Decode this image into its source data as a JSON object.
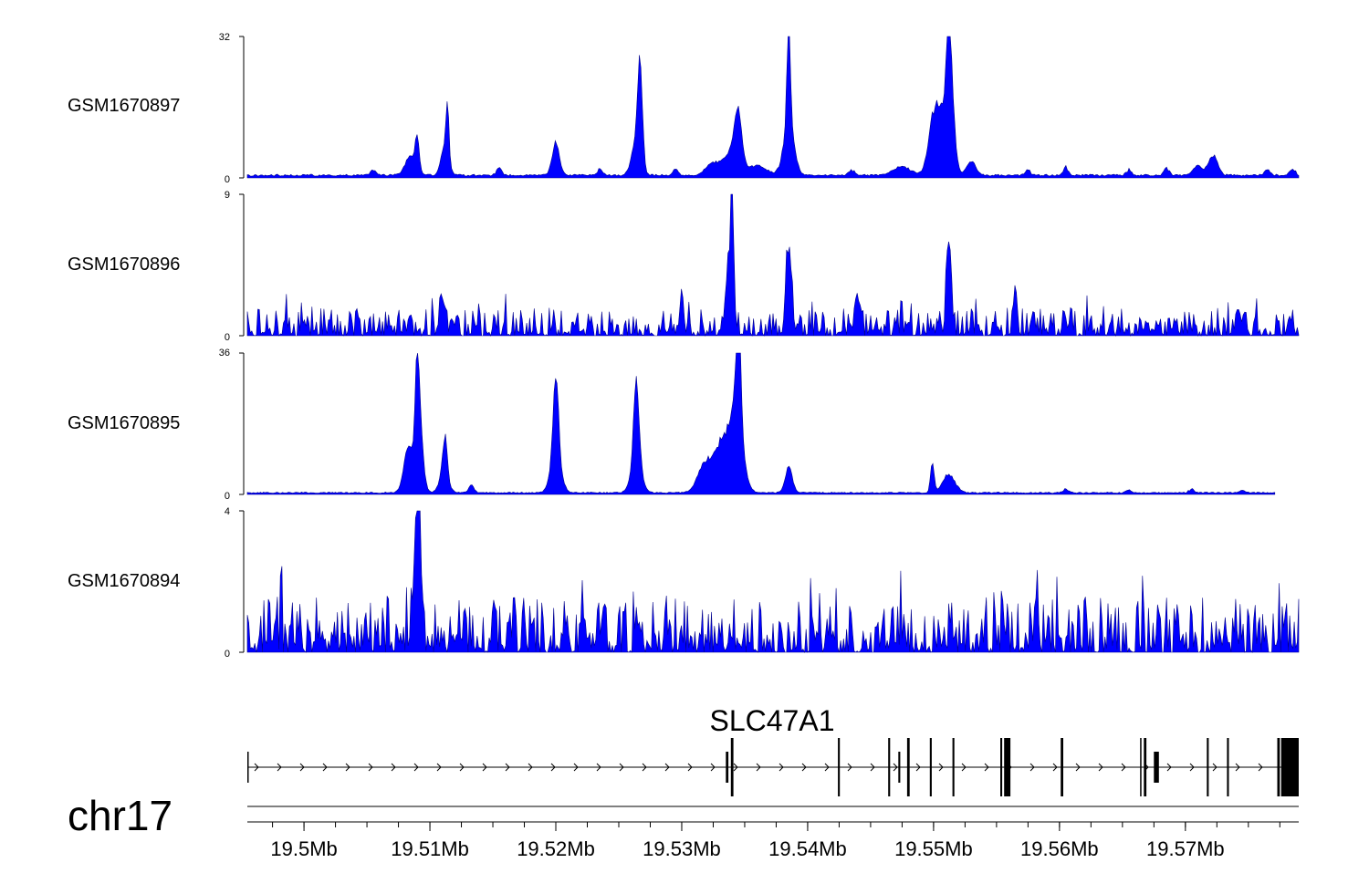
{
  "chart_data": {
    "type": "area",
    "chromosome": "chr17",
    "xlim": [
      19.4955,
      19.579
    ],
    "fill_color": "#0000ff",
    "tracks": [
      {
        "name": "GSM1670897",
        "ylim": [
          0,
          32
        ],
        "ymax_label": "32",
        "ymin_label": "0",
        "baseline": 0.4,
        "noise": 0.7,
        "noise_peaks": [
          {
            "x": 19.5055,
            "v": 1.2
          },
          {
            "x": 19.5155,
            "v": 1.8
          },
          {
            "x": 19.5235,
            "v": 1.6
          },
          {
            "x": 19.5295,
            "v": 1.9
          },
          {
            "x": 19.5435,
            "v": 1.4
          },
          {
            "x": 19.5575,
            "v": 1.5
          },
          {
            "x": 19.5605,
            "v": 2.0
          },
          {
            "x": 19.5655,
            "v": 1.5
          },
          {
            "x": 19.5685,
            "v": 1.8
          },
          {
            "x": 19.5765,
            "v": 1.6
          },
          {
            "x": 19.5785,
            "v": 1.8
          }
        ],
        "peaks": [
          {
            "x": 19.5085,
            "v": 5,
            "w": 0.0006
          },
          {
            "x": 19.509,
            "v": 8,
            "w": 0.0002
          },
          {
            "x": 19.5112,
            "v": 8,
            "w": 0.0004
          },
          {
            "x": 19.5114,
            "v": 12,
            "w": 0.00015
          },
          {
            "x": 19.52,
            "v": 8,
            "w": 0.0004
          },
          {
            "x": 19.5267,
            "v": 23,
            "w": 0.00025
          },
          {
            "x": 19.5264,
            "v": 9,
            "w": 0.0005
          },
          {
            "x": 19.5325,
            "v": 3,
            "w": 0.0008
          },
          {
            "x": 19.534,
            "v": 6,
            "w": 0.0008
          },
          {
            "x": 19.5345,
            "v": 12,
            "w": 0.0004
          },
          {
            "x": 19.5385,
            "v": 27,
            "w": 0.0002
          },
          {
            "x": 19.5385,
            "v": 12,
            "w": 0.0006
          },
          {
            "x": 19.536,
            "v": 2.5,
            "w": 0.001
          },
          {
            "x": 19.55,
            "v": 11,
            "w": 0.0006
          },
          {
            "x": 19.5512,
            "v": 32,
            "w": 0.00015
          },
          {
            "x": 19.5513,
            "v": 22,
            "w": 0.0004
          },
          {
            "x": 19.5508,
            "v": 13,
            "w": 0.0008
          },
          {
            "x": 19.553,
            "v": 3.5,
            "w": 0.0005
          },
          {
            "x": 19.5475,
            "v": 2,
            "w": 0.001
          },
          {
            "x": 19.5722,
            "v": 5,
            "w": 0.0005
          },
          {
            "x": 19.571,
            "v": 2.5,
            "w": 0.0005
          }
        ]
      },
      {
        "name": "GSM1670896",
        "ylim": [
          0,
          9
        ],
        "ymax_label": "9",
        "ymin_label": "0",
        "baseline": 0.0,
        "noise": 1.8,
        "noise_peaks": [],
        "peaks": [
          {
            "x": 19.534,
            "v": 9,
            "w": 0.00015
          },
          {
            "x": 19.5338,
            "v": 5,
            "w": 0.0004
          },
          {
            "x": 19.5385,
            "v": 5.5,
            "w": 0.0003
          },
          {
            "x": 19.5512,
            "v": 7,
            "w": 0.00025
          },
          {
            "x": 19.511,
            "v": 2.5,
            "w": 0.0003
          },
          {
            "x": 19.5565,
            "v": 3.3,
            "w": 0.0002
          },
          {
            "x": 19.53,
            "v": 2.8,
            "w": 0.0002
          },
          {
            "x": 19.544,
            "v": 2.6,
            "w": 0.0002
          }
        ]
      },
      {
        "name": "GSM1670895",
        "ylim": [
          0,
          36
        ],
        "ymax_label": "36",
        "ymin_label": "0",
        "xend": 19.5771,
        "baseline": 0.3,
        "noise": 0.5,
        "noise_peaks": [
          {
            "x": 19.5605,
            "v": 1.1
          },
          {
            "x": 19.5655,
            "v": 0.9
          },
          {
            "x": 19.5705,
            "v": 1.2
          },
          {
            "x": 19.5745,
            "v": 1.0
          }
        ],
        "peaks": [
          {
            "x": 19.5083,
            "v": 13,
            "w": 0.0005
          },
          {
            "x": 19.509,
            "v": 26,
            "w": 0.00025
          },
          {
            "x": 19.5092,
            "v": 15,
            "w": 0.0004
          },
          {
            "x": 19.5112,
            "v": 11,
            "w": 0.00025
          },
          {
            "x": 19.5111,
            "v": 5,
            "w": 0.0005
          },
          {
            "x": 19.5133,
            "v": 2,
            "w": 0.0003
          },
          {
            "x": 19.52,
            "v": 23,
            "w": 0.0003
          },
          {
            "x": 19.52,
            "v": 9,
            "w": 0.0006
          },
          {
            "x": 19.5264,
            "v": 23,
            "w": 0.0003
          },
          {
            "x": 19.5264,
            "v": 8,
            "w": 0.0006
          },
          {
            "x": 19.5318,
            "v": 7,
            "w": 0.0008
          },
          {
            "x": 19.5333,
            "v": 14,
            "w": 0.001
          },
          {
            "x": 19.5345,
            "v": 35,
            "w": 0.00025
          },
          {
            "x": 19.5344,
            "v": 18,
            "w": 0.0007
          },
          {
            "x": 19.5385,
            "v": 7,
            "w": 0.0004
          },
          {
            "x": 19.5499,
            "v": 8,
            "w": 0.0002
          },
          {
            "x": 19.5512,
            "v": 5,
            "w": 0.0007
          }
        ]
      },
      {
        "name": "GSM1670894",
        "ylim": [
          0,
          4
        ],
        "ymax_label": "4",
        "ymin_label": "0",
        "baseline": 0.0,
        "noise": 1.6,
        "noise_peaks": [],
        "peaks": [
          {
            "x": 19.5091,
            "v": 4,
            "w": 0.00015
          },
          {
            "x": 19.5089,
            "v": 2.6,
            "w": 0.0004
          }
        ]
      }
    ],
    "gene": {
      "name": "SLC47A1",
      "start": 19.4955,
      "end": 19.579,
      "strand": "+",
      "exons": [
        {
          "start": 19.4955,
          "end": 19.49555,
          "tall": false
        },
        {
          "start": 19.5335,
          "end": 19.5337,
          "tall": false
        },
        {
          "start": 19.5339,
          "end": 19.5341,
          "tall": true
        },
        {
          "start": 19.5424,
          "end": 19.54255,
          "tall": true
        },
        {
          "start": 19.5464,
          "end": 19.54655,
          "tall": true
        },
        {
          "start": 19.5472,
          "end": 19.54735,
          "tall": false
        },
        {
          "start": 19.5479,
          "end": 19.5481,
          "tall": true
        },
        {
          "start": 19.5497,
          "end": 19.54985,
          "tall": true
        },
        {
          "start": 19.5515,
          "end": 19.55165,
          "tall": true
        },
        {
          "start": 19.5553,
          "end": 19.55545,
          "tall": true
        },
        {
          "start": 19.5556,
          "end": 19.5561,
          "tall": true
        },
        {
          "start": 19.5601,
          "end": 19.5603,
          "tall": true
        },
        {
          "start": 19.5664,
          "end": 19.5665,
          "tall": true
        },
        {
          "start": 19.5667,
          "end": 19.5669,
          "tall": true
        },
        {
          "start": 19.5675,
          "end": 19.5679,
          "tall": false
        },
        {
          "start": 19.5717,
          "end": 19.57185,
          "tall": true
        },
        {
          "start": 19.5733,
          "end": 19.57345,
          "tall": true
        },
        {
          "start": 19.5773,
          "end": 19.5775,
          "tall": true
        },
        {
          "start": 19.5776,
          "end": 19.579,
          "tall": true
        }
      ]
    },
    "x_axis": {
      "ticks_major": [
        19.5,
        19.51,
        19.52,
        19.53,
        19.54,
        19.55,
        19.56,
        19.57
      ],
      "tick_labels": [
        "19.5Mb",
        "19.51Mb",
        "19.52Mb",
        "19.53Mb",
        "19.54Mb",
        "19.55Mb",
        "19.56Mb",
        "19.57Mb"
      ],
      "minor_step": 0.0025
    }
  }
}
